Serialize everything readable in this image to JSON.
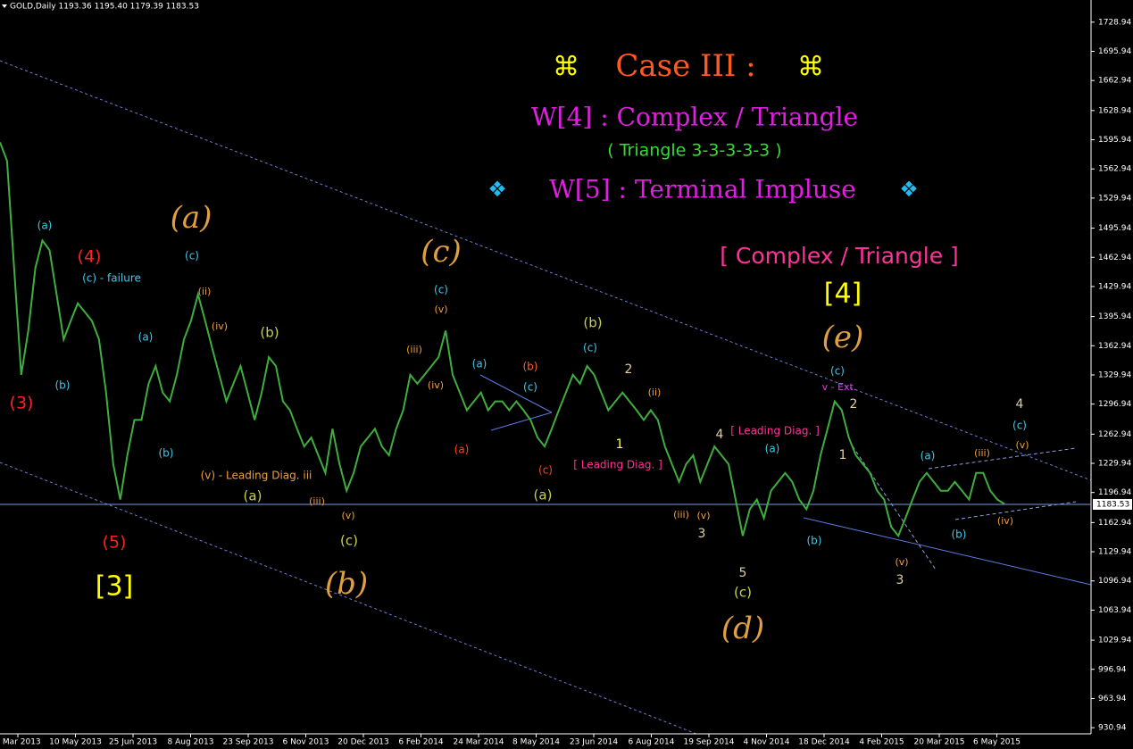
{
  "header": "GOLD,Daily  1193.36 1195.40 1179.39 1183.53",
  "chart_data": {
    "type": "line",
    "color": "#3fae3f",
    "values": [
      1593,
      1572,
      1451,
      1330,
      1380,
      1451,
      1482,
      1471,
      1421,
      1370,
      1391,
      1411,
      1401,
      1391,
      1370,
      1310,
      1229,
      1189,
      1239,
      1279,
      1279,
      1320,
      1340,
      1310,
      1300,
      1330,
      1370,
      1391,
      1421,
      1391,
      1360,
      1330,
      1300,
      1320,
      1340,
      1310,
      1279,
      1310,
      1350,
      1340,
      1300,
      1290,
      1269,
      1249,
      1259,
      1239,
      1219,
      1269,
      1229,
      1199,
      1219,
      1249,
      1259,
      1269,
      1249,
      1239,
      1269,
      1290,
      1330,
      1320,
      1330,
      1340,
      1350,
      1380,
      1330,
      1310,
      1290,
      1300,
      1310,
      1290,
      1300,
      1300,
      1290,
      1300,
      1290,
      1279,
      1259,
      1249,
      1269,
      1290,
      1310,
      1330,
      1320,
      1340,
      1330,
      1310,
      1290,
      1300,
      1310,
      1300,
      1290,
      1279,
      1290,
      1279,
      1249,
      1229,
      1209,
      1229,
      1239,
      1209,
      1229,
      1249,
      1239,
      1229,
      1189,
      1148,
      1178,
      1189,
      1168,
      1199,
      1209,
      1219,
      1209,
      1189,
      1178,
      1199,
      1239,
      1269,
      1300,
      1290,
      1259,
      1239,
      1229,
      1219,
      1199,
      1189,
      1158,
      1148,
      1168,
      1189,
      1209,
      1219,
      1209,
      1199,
      1199,
      1209,
      1199,
      1189,
      1219,
      1219,
      1199,
      1189,
      1184
    ],
    "ylim": [
      924,
      1754
    ],
    "yticks": [
      1728.94,
      1695.94,
      1662.94,
      1628.94,
      1595.94,
      1562.94,
      1529.94,
      1495.94,
      1462.94,
      1429.94,
      1395.94,
      1362.94,
      1329.94,
      1296.94,
      1262.94,
      1229.94,
      1196.94,
      1162.94,
      1129.94,
      1096.94,
      1063.94,
      1029.94,
      996.94,
      963.94,
      930.94
    ],
    "x_labels": [
      "6 Mar 2013",
      "10 May 2013",
      "25 Jun 2013",
      "8 Aug 2013",
      "23 Sep 2013",
      "6 Nov 2013",
      "20 Dec 2013",
      "6 Feb 2014",
      "24 Mar 2014",
      "8 May 2014",
      "23 Jun 2014",
      "6 Aug 2014",
      "19 Sep 2014",
      "4 Nov 2014",
      "18 Dec 2014",
      "4 Feb 2015",
      "20 Mar 2015",
      "6 May 2015"
    ],
    "last_price": 1183.53,
    "annotations": [
      {
        "text": "⌘",
        "color": "#ffff00"
      },
      {
        "text": "Case III :",
        "color": "#ff5a1e"
      },
      {
        "text": "⌘",
        "color": "#ffff00"
      },
      {
        "text": "W[4] : Complex / Triangle",
        "color": "#e020e0"
      },
      {
        "text": "( Triangle 3-3-3-3-3 )",
        "color": "#33dd33"
      },
      {
        "text": "❖",
        "color": "#22bbee"
      },
      {
        "text": "W[5] : Terminal Impluse",
        "color": "#e020e0"
      },
      {
        "text": "❖",
        "color": "#22bbee"
      },
      {
        "text": "[ Complex / Triangle ]",
        "color": "#ff3399"
      },
      {
        "text": "[4]",
        "color": "#ffff00"
      },
      {
        "text": "[3]",
        "color": "#ffff00"
      },
      {
        "text": "(3)",
        "color": "#ff2020"
      },
      {
        "text": "(4)",
        "color": "#ff2020"
      },
      {
        "text": "(5)",
        "color": "#ff2020"
      },
      {
        "text": "(a)",
        "color": "#e0a040"
      },
      {
        "text": "(b)",
        "color": "#e0a040"
      },
      {
        "text": "(c)",
        "color": "#e0a040"
      },
      {
        "text": "(d)",
        "color": "#e0a040"
      },
      {
        "text": "(e)",
        "color": "#e0a040"
      },
      {
        "text": "(a)",
        "color": "#40c8e8"
      },
      {
        "text": "(b)",
        "color": "#40c8e8"
      },
      {
        "text": "(c) - failure",
        "color": "#40c8e8"
      },
      {
        "text": "(c)",
        "color": "#40c8e8"
      },
      {
        "text": "(a)",
        "color": "#40c8e8"
      },
      {
        "text": "(b)",
        "color": "#40c8e8"
      },
      {
        "text": "(b)",
        "color": "#c8d050"
      },
      {
        "text": "(a)",
        "color": "#c8d050"
      },
      {
        "text": "(c)",
        "color": "#c8d050"
      },
      {
        "text": "(v) - Leading Diag. iii",
        "color": "#f0a040"
      },
      {
        "text": "(c)",
        "color": "#40c8e8"
      },
      {
        "text": "(a)",
        "color": "#40c8e8"
      },
      {
        "text": "(b)",
        "color": "#ff6020"
      },
      {
        "text": "(c)",
        "color": "#40c8e8"
      },
      {
        "text": "(a)",
        "color": "#ff4020"
      },
      {
        "text": "(c)",
        "color": "#ff4020"
      },
      {
        "text": "(b)",
        "color": "#c8d050"
      },
      {
        "text": "(a)",
        "color": "#c8d050"
      },
      {
        "text": "(c)",
        "color": "#40c8e8"
      },
      {
        "text": "[ Leading Diag. ]",
        "color": "#ff3399"
      },
      {
        "text": "2",
        "color": "#e0d0a0"
      },
      {
        "text": "1",
        "color": "#ffff40"
      },
      {
        "text": "[ Leading Diag. ]",
        "color": "#ff3399"
      },
      {
        "text": "4",
        "color": "#e0d0a0"
      },
      {
        "text": "3",
        "color": "#e0d0a0"
      },
      {
        "text": "5",
        "color": "#e0d0a0"
      },
      {
        "text": "(c)",
        "color": "#c8d050"
      },
      {
        "text": "(a)",
        "color": "#40c8e8"
      },
      {
        "text": "(b)",
        "color": "#40c8e8"
      },
      {
        "text": "(c)",
        "color": "#40c8e8"
      },
      {
        "text": "v - Ext.",
        "color": "#e040e0"
      },
      {
        "text": "2",
        "color": "#e0d0a0"
      },
      {
        "text": "1",
        "color": "#e0d0a0"
      },
      {
        "text": "3",
        "color": "#e0d0a0"
      },
      {
        "text": "(a)",
        "color": "#40c8e8"
      },
      {
        "text": "(b)",
        "color": "#40c8e8"
      },
      {
        "text": "(iii)",
        "color": "#f0a040"
      },
      {
        "text": "(iv)",
        "color": "#f0a040"
      },
      {
        "text": "(v)",
        "color": "#f0a040"
      },
      {
        "text": "4",
        "color": "#e0d0a0"
      },
      {
        "text": "(c)",
        "color": "#40c8e8"
      },
      {
        "text": "(v)",
        "color": "#f0a040"
      },
      {
        "text": "(iii)",
        "color": "#f0a040"
      },
      {
        "text": "(v)",
        "color": "#f0a040"
      },
      {
        "text": "(ii)",
        "color": "#f0a040"
      },
      {
        "text": "(iv)",
        "color": "#f0a040"
      },
      {
        "text": "(iii)",
        "color": "#f0a040"
      },
      {
        "text": "(v)",
        "color": "#f0a040"
      },
      {
        "text": "(iv)",
        "color": "#f0a040"
      },
      {
        "text": "(ii)",
        "color": "#f0a040"
      },
      {
        "text": "(iii)",
        "color": "#f0a040"
      },
      {
        "text": "(v)",
        "color": "#f0a040"
      }
    ]
  }
}
